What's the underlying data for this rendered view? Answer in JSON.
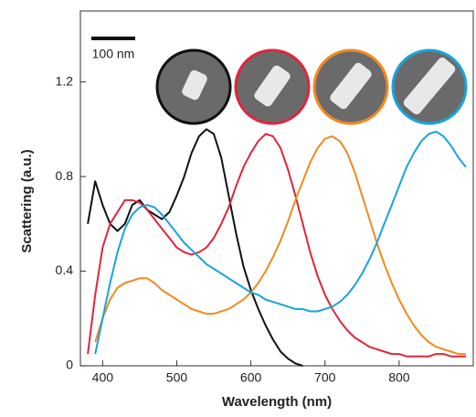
{
  "chart_data": {
    "type": "line",
    "xlabel": "Wavelength (nm)",
    "ylabel": "Scattering (a.u.)",
    "scale_bar_label": "100 nm",
    "xlim": [
      370,
      900
    ],
    "ylim": [
      0,
      1.5
    ],
    "xticks": [
      400,
      500,
      600,
      700,
      800
    ],
    "yticks": [
      0,
      0.4,
      0.8,
      1.2
    ],
    "x": [
      380,
      390,
      400,
      410,
      420,
      430,
      440,
      450,
      460,
      470,
      480,
      490,
      500,
      510,
      520,
      530,
      540,
      550,
      560,
      570,
      580,
      590,
      600,
      610,
      620,
      630,
      640,
      650,
      660,
      670,
      680,
      690,
      700,
      710,
      720,
      730,
      740,
      750,
      760,
      770,
      780,
      790,
      800,
      810,
      820,
      830,
      840,
      850,
      860,
      870,
      880,
      890
    ],
    "series": [
      {
        "color": "#111111",
        "values": [
          0.6,
          0.78,
          0.68,
          0.6,
          0.57,
          0.6,
          0.68,
          0.7,
          0.66,
          0.64,
          0.62,
          0.65,
          0.72,
          0.8,
          0.9,
          0.97,
          1.0,
          0.98,
          0.88,
          0.72,
          0.56,
          0.42,
          0.32,
          0.24,
          0.17,
          0.11,
          0.06,
          0.03,
          0.01,
          0,
          null,
          null,
          null,
          null,
          null,
          null,
          null,
          null,
          null,
          null,
          null,
          null,
          null,
          null,
          null,
          null,
          null,
          null,
          null,
          null,
          null,
          null
        ]
      },
      {
        "color": "#e0253a",
        "values": [
          0.05,
          0.3,
          0.5,
          0.6,
          0.65,
          0.7,
          0.7,
          0.69,
          0.66,
          0.62,
          0.58,
          0.54,
          0.5,
          0.48,
          0.47,
          0.48,
          0.5,
          0.54,
          0.6,
          0.67,
          0.76,
          0.84,
          0.9,
          0.95,
          0.98,
          0.97,
          0.92,
          0.83,
          0.72,
          0.6,
          0.48,
          0.38,
          0.3,
          0.24,
          0.19,
          0.15,
          0.12,
          0.1,
          0.08,
          0.07,
          0.06,
          0.05,
          0.05,
          0.04,
          0.04,
          0.04,
          0.04,
          0.05,
          0.05,
          0.04,
          0.04,
          0.04
        ]
      },
      {
        "color": "#ef8a22",
        "values": [
          null,
          0.1,
          0.2,
          0.28,
          0.33,
          0.35,
          0.36,
          0.37,
          0.37,
          0.35,
          0.32,
          0.3,
          0.28,
          0.26,
          0.24,
          0.23,
          0.22,
          0.22,
          0.23,
          0.24,
          0.26,
          0.28,
          0.31,
          0.35,
          0.4,
          0.46,
          0.53,
          0.61,
          0.7,
          0.78,
          0.86,
          0.92,
          0.96,
          0.97,
          0.95,
          0.9,
          0.82,
          0.72,
          0.62,
          0.52,
          0.43,
          0.35,
          0.28,
          0.22,
          0.17,
          0.13,
          0.1,
          0.08,
          0.07,
          0.06,
          0.05,
          0.05
        ]
      },
      {
        "color": "#1aa3d9",
        "values": [
          null,
          0.05,
          0.2,
          0.35,
          0.48,
          0.58,
          0.64,
          0.67,
          0.68,
          0.67,
          0.64,
          0.6,
          0.56,
          0.52,
          0.49,
          0.46,
          0.43,
          0.41,
          0.39,
          0.37,
          0.35,
          0.33,
          0.31,
          0.3,
          0.28,
          0.27,
          0.26,
          0.25,
          0.24,
          0.24,
          0.23,
          0.23,
          0.24,
          0.25,
          0.27,
          0.3,
          0.34,
          0.39,
          0.45,
          0.52,
          0.6,
          0.68,
          0.76,
          0.84,
          0.9,
          0.95,
          0.98,
          0.99,
          0.97,
          0.93,
          0.88,
          0.84
        ]
      }
    ]
  }
}
